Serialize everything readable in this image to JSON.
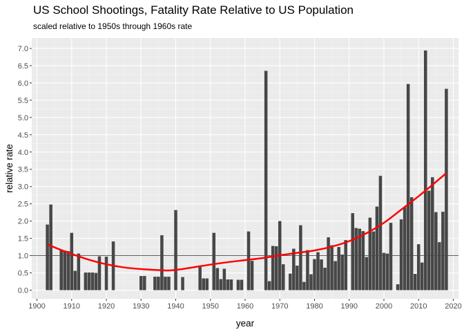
{
  "chart_data": {
    "type": "bar",
    "title": "US School Shootings, Fatality Rate Relative to US Population",
    "subtitle": "scaled relative to 1950s through 1960s rate",
    "xlabel": "year",
    "ylabel": "relative rate",
    "xlim": [
      1898.5,
      2021.5
    ],
    "ylim": [
      -0.25,
      7.3
    ],
    "x_ticks": [
      1900,
      1910,
      1920,
      1930,
      1940,
      1950,
      1960,
      1970,
      1980,
      1990,
      2000,
      2010,
      2020
    ],
    "y_ticks": [
      0.0,
      0.5,
      1.0,
      1.5,
      2.0,
      2.5,
      3.0,
      3.5,
      4.0,
      4.5,
      5.0,
      5.5,
      6.0,
      6.5,
      7.0
    ],
    "grid": true,
    "reference_line": 1.0,
    "colors": {
      "panel": "#ebebeb",
      "grid_major": "#ffffff",
      "grid_minor": "#f5f5f5",
      "bar": "#474747",
      "trend": "#ff0000",
      "reference": "#474747"
    },
    "bars": [
      {
        "x": 1903,
        "y": 1.9
      },
      {
        "x": 1904,
        "y": 2.48
      },
      {
        "x": 1907,
        "y": 1.15
      },
      {
        "x": 1908,
        "y": 1.15
      },
      {
        "x": 1909,
        "y": 1.13
      },
      {
        "x": 1910,
        "y": 1.66
      },
      {
        "x": 1911,
        "y": 0.56
      },
      {
        "x": 1912,
        "y": 1.06
      },
      {
        "x": 1914,
        "y": 0.51
      },
      {
        "x": 1915,
        "y": 0.51
      },
      {
        "x": 1916,
        "y": 0.51
      },
      {
        "x": 1917,
        "y": 0.5
      },
      {
        "x": 1918,
        "y": 0.98
      },
      {
        "x": 1920,
        "y": 0.97
      },
      {
        "x": 1922,
        "y": 1.41
      },
      {
        "x": 1930,
        "y": 0.41
      },
      {
        "x": 1931,
        "y": 0.41
      },
      {
        "x": 1934,
        "y": 0.39
      },
      {
        "x": 1935,
        "y": 0.39
      },
      {
        "x": 1936,
        "y": 1.59
      },
      {
        "x": 1937,
        "y": 0.39
      },
      {
        "x": 1938,
        "y": 0.39
      },
      {
        "x": 1940,
        "y": 2.32
      },
      {
        "x": 1942,
        "y": 0.38
      },
      {
        "x": 1947,
        "y": 0.67
      },
      {
        "x": 1948,
        "y": 0.34
      },
      {
        "x": 1949,
        "y": 0.34
      },
      {
        "x": 1951,
        "y": 1.66
      },
      {
        "x": 1952,
        "y": 0.64
      },
      {
        "x": 1953,
        "y": 0.32
      },
      {
        "x": 1954,
        "y": 0.62
      },
      {
        "x": 1955,
        "y": 0.31
      },
      {
        "x": 1956,
        "y": 0.31
      },
      {
        "x": 1958,
        "y": 0.3
      },
      {
        "x": 1959,
        "y": 0.3
      },
      {
        "x": 1961,
        "y": 1.7
      },
      {
        "x": 1962,
        "y": 0.85
      },
      {
        "x": 1966,
        "y": 6.35
      },
      {
        "x": 1967,
        "y": 0.26
      },
      {
        "x": 1968,
        "y": 1.28
      },
      {
        "x": 1969,
        "y": 1.27
      },
      {
        "x": 1970,
        "y": 2.0
      },
      {
        "x": 1971,
        "y": 0.75
      },
      {
        "x": 1973,
        "y": 0.48
      },
      {
        "x": 1974,
        "y": 1.2
      },
      {
        "x": 1975,
        "y": 0.71
      },
      {
        "x": 1976,
        "y": 1.88
      },
      {
        "x": 1977,
        "y": 0.24
      },
      {
        "x": 1978,
        "y": 1.16
      },
      {
        "x": 1979,
        "y": 0.46
      },
      {
        "x": 1980,
        "y": 0.9
      },
      {
        "x": 1981,
        "y": 1.1
      },
      {
        "x": 1982,
        "y": 0.89
      },
      {
        "x": 1983,
        "y": 0.65
      },
      {
        "x": 1984,
        "y": 1.53
      },
      {
        "x": 1985,
        "y": 1.3
      },
      {
        "x": 1986,
        "y": 0.84
      },
      {
        "x": 1987,
        "y": 1.25
      },
      {
        "x": 1988,
        "y": 1.03
      },
      {
        "x": 1989,
        "y": 1.45
      },
      {
        "x": 1991,
        "y": 2.23
      },
      {
        "x": 1992,
        "y": 1.8
      },
      {
        "x": 1993,
        "y": 1.78
      },
      {
        "x": 1994,
        "y": 1.71
      },
      {
        "x": 1995,
        "y": 0.96
      },
      {
        "x": 1996,
        "y": 2.1
      },
      {
        "x": 1997,
        "y": 1.7
      },
      {
        "x": 1998,
        "y": 2.42
      },
      {
        "x": 1999,
        "y": 3.31
      },
      {
        "x": 2000,
        "y": 1.08
      },
      {
        "x": 2001,
        "y": 1.06
      },
      {
        "x": 2002,
        "y": 1.95
      },
      {
        "x": 2004,
        "y": 0.17
      },
      {
        "x": 2005,
        "y": 2.05
      },
      {
        "x": 2006,
        "y": 2.4
      },
      {
        "x": 2007,
        "y": 5.97
      },
      {
        "x": 2008,
        "y": 2.69
      },
      {
        "x": 2009,
        "y": 0.47
      },
      {
        "x": 2010,
        "y": 1.33
      },
      {
        "x": 2011,
        "y": 0.8
      },
      {
        "x": 2012,
        "y": 6.94
      },
      {
        "x": 2013,
        "y": 2.88
      },
      {
        "x": 2014,
        "y": 3.27
      },
      {
        "x": 2015,
        "y": 2.26
      },
      {
        "x": 2016,
        "y": 1.39
      },
      {
        "x": 2017,
        "y": 2.27
      },
      {
        "x": 2018,
        "y": 5.83
      }
    ],
    "trend": [
      {
        "x": 1903,
        "y": 1.33
      },
      {
        "x": 1906,
        "y": 1.2
      },
      {
        "x": 1910,
        "y": 1.05
      },
      {
        "x": 1915,
        "y": 0.88
      },
      {
        "x": 1920,
        "y": 0.75
      },
      {
        "x": 1925,
        "y": 0.66
      },
      {
        "x": 1930,
        "y": 0.61
      },
      {
        "x": 1935,
        "y": 0.58
      },
      {
        "x": 1938,
        "y": 0.57
      },
      {
        "x": 1941,
        "y": 0.6
      },
      {
        "x": 1945,
        "y": 0.66
      },
      {
        "x": 1950,
        "y": 0.74
      },
      {
        "x": 1955,
        "y": 0.81
      },
      {
        "x": 1960,
        "y": 0.87
      },
      {
        "x": 1965,
        "y": 0.93
      },
      {
        "x": 1970,
        "y": 1.01
      },
      {
        "x": 1975,
        "y": 1.08
      },
      {
        "x": 1980,
        "y": 1.15
      },
      {
        "x": 1985,
        "y": 1.26
      },
      {
        "x": 1990,
        "y": 1.42
      },
      {
        "x": 1995,
        "y": 1.65
      },
      {
        "x": 2000,
        "y": 1.95
      },
      {
        "x": 2005,
        "y": 2.33
      },
      {
        "x": 2010,
        "y": 2.72
      },
      {
        "x": 2014,
        "y": 3.05
      },
      {
        "x": 2018,
        "y": 3.39
      }
    ]
  }
}
